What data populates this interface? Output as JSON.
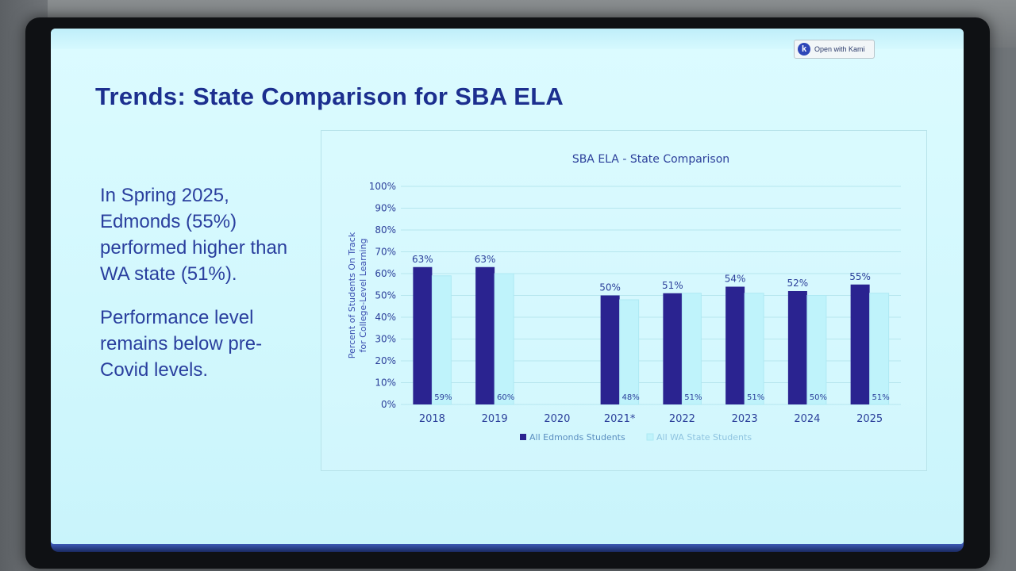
{
  "kami_button": {
    "label": "Open with Kami",
    "icon": "kami-logo-icon"
  },
  "slide": {
    "title": "Trends:  State Comparison for SBA ELA",
    "bullets": [
      "In Spring 2025, Edmonds (55%) performed higher than WA state (51%).",
      "Performance level remains below pre-Covid levels."
    ]
  },
  "colors": {
    "edmonds": "#2a2390",
    "state": "#c2f5fc",
    "title": "#1c2f8f",
    "text": "#2a3f9e"
  },
  "chart_data": {
    "type": "bar",
    "title": "SBA ELA - State Comparison",
    "ylabel": "Percent of Students On Track for College-Level Learning",
    "xlabel": "",
    "ylim": [
      0,
      100
    ],
    "yticks": [
      "0%",
      "10%",
      "20%",
      "30%",
      "40%",
      "50%",
      "60%",
      "70%",
      "80%",
      "90%",
      "100%"
    ],
    "categories": [
      "2018",
      "2019",
      "2020",
      "2021*",
      "2022",
      "2023",
      "2024",
      "2025"
    ],
    "series": [
      {
        "name": "All Edmonds Students",
        "values": [
          63,
          63,
          null,
          50,
          51,
          54,
          52,
          55
        ],
        "labels": [
          "63%",
          "63%",
          "",
          "50%",
          "51%",
          "54%",
          "52%",
          "55%"
        ]
      },
      {
        "name": "All WA State Students",
        "values": [
          59,
          60,
          null,
          48,
          51,
          51,
          50,
          51
        ],
        "labels": [
          "59%",
          "60%",
          "",
          "48%",
          "51%",
          "51%",
          "50%",
          "51%"
        ]
      }
    ],
    "legend": "bottom-center"
  }
}
